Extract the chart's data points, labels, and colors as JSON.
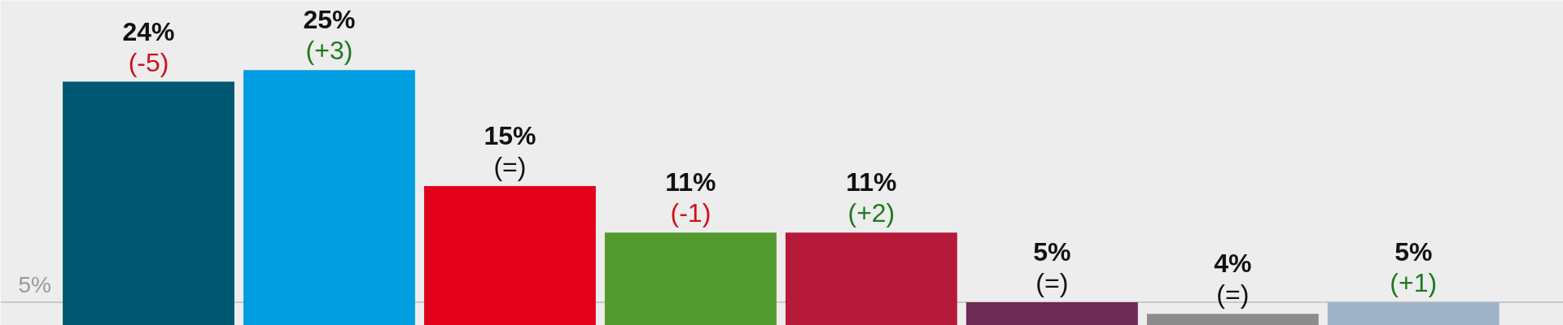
{
  "chart_data": {
    "type": "bar",
    "categories": [
      null,
      null,
      null,
      null,
      null,
      null,
      null,
      null
    ],
    "values": [
      24,
      25,
      15,
      11,
      11,
      5,
      4,
      5
    ],
    "colors": [
      "#005772",
      "#009ee0",
      "#e2001a",
      "#529a2d",
      "#b51a3a",
      "#6d2b55",
      "#8c8c8c",
      "#9fb3c8"
    ],
    "ylim": [
      3,
      31
    ],
    "tick_labels": false,
    "ref_lines": [
      {
        "axis": "y",
        "value": 5,
        "label": "5%",
        "color": "#c8c8c8"
      }
    ],
    "value_labels": [
      "24%\n(-5)",
      "25%\n(+3)",
      "15%\n(=)",
      "11%\n(-1)",
      "11%\n(+2)",
      "5%\n(=)",
      "4%\n(=)",
      "5%\n(+1)"
    ]
  }
}
